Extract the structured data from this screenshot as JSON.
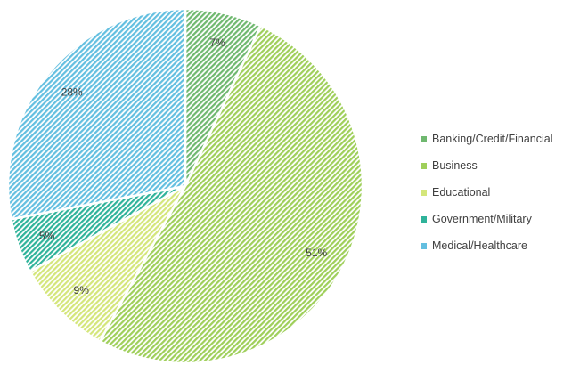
{
  "chart_data": {
    "type": "pie",
    "title": "",
    "legend_position": "right",
    "slices": [
      {
        "label": "Banking/Credit/Financial",
        "value": 7,
        "display": "7%",
        "color": "#6fb86f"
      },
      {
        "label": "Business",
        "value": 51,
        "display": "51%",
        "color": "#9fcf5a"
      },
      {
        "label": "Educational",
        "value": 9,
        "display": "9%",
        "color": "#d4e67a"
      },
      {
        "label": "Government/Military",
        "value": 5,
        "display": "5%",
        "color": "#2fb39a"
      },
      {
        "label": "Medical/Healthcare",
        "value": 28,
        "display": "28%",
        "color": "#63bfe0"
      }
    ]
  }
}
